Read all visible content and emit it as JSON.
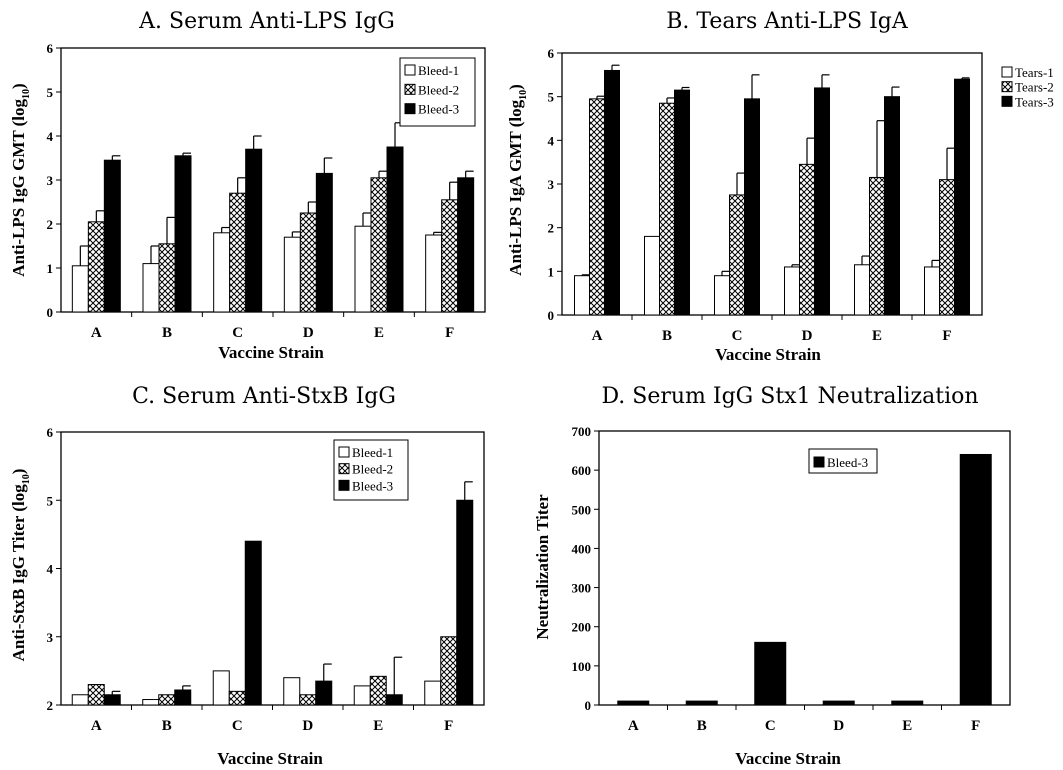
{
  "chart_data": [
    {
      "type": "bar",
      "title": "A. Serum Anti-LPS IgG",
      "xlabel": "Vaccine Strain",
      "ylabel_main": "Anti-LPS IgG GMT (log",
      "ylabel_sub": "10",
      "ylabel_end": ")",
      "categories": [
        "A",
        "B",
        "C",
        "D",
        "E",
        "F"
      ],
      "ylim": [
        0,
        6
      ],
      "yticks": [
        0,
        1,
        2,
        3,
        4,
        5,
        6
      ],
      "legend_position": "top-right",
      "series": [
        {
          "name": "Bleed-1",
          "pattern": "white",
          "values": [
            1.05,
            1.1,
            1.8,
            1.7,
            1.95,
            1.75
          ],
          "errors": [
            0.45,
            0.4,
            0.12,
            0.12,
            0.3,
            0.06
          ]
        },
        {
          "name": "Bleed-2",
          "pattern": "crosshatch",
          "values": [
            2.05,
            1.55,
            2.7,
            2.25,
            3.05,
            2.55
          ],
          "errors": [
            0.25,
            0.6,
            0.35,
            0.25,
            0.15,
            0.4
          ]
        },
        {
          "name": "Bleed-3",
          "pattern": "black",
          "values": [
            3.45,
            3.55,
            3.7,
            3.15,
            3.75,
            3.05
          ],
          "errors": [
            0.1,
            0.06,
            0.3,
            0.35,
            0.55,
            0.15
          ]
        }
      ]
    },
    {
      "type": "bar",
      "title": "B. Tears Anti-LPS IgA",
      "xlabel": "Vaccine Strain",
      "ylabel_main": "Anti-LPS IgA GMT (log",
      "ylabel_sub": "10",
      "ylabel_end": ")",
      "categories": [
        "A",
        "B",
        "C",
        "D",
        "E",
        "F"
      ],
      "ylim": [
        0,
        6
      ],
      "yticks": [
        0,
        1,
        2,
        3,
        4,
        5,
        6
      ],
      "legend_position": "outside-right",
      "series": [
        {
          "name": "Tears-1",
          "pattern": "white",
          "values": [
            0.9,
            1.8,
            0.9,
            1.1,
            1.15,
            1.1
          ],
          "errors": [
            0.02,
            0.0,
            0.1,
            0.05,
            0.2,
            0.15
          ]
        },
        {
          "name": "Tears-2",
          "pattern": "crosshatch",
          "values": [
            4.95,
            4.85,
            2.75,
            3.45,
            3.15,
            3.1
          ],
          "errors": [
            0.06,
            0.12,
            0.5,
            0.6,
            1.3,
            0.72
          ]
        },
        {
          "name": "Tears-3",
          "pattern": "black",
          "values": [
            5.6,
            5.15,
            4.95,
            5.2,
            5.0,
            5.4
          ],
          "errors": [
            0.12,
            0.06,
            0.55,
            0.3,
            0.22,
            0.03
          ]
        }
      ]
    },
    {
      "type": "bar",
      "title": "C. Serum Anti-StxB IgG",
      "xlabel": "Vaccine Strain",
      "ylabel_main": "Anti-StxB IgG Titer (log",
      "ylabel_sub": "10",
      "ylabel_end": ")",
      "categories": [
        "A",
        "B",
        "C",
        "D",
        "E",
        "F"
      ],
      "ylim": [
        2,
        6
      ],
      "yticks": [
        2,
        3,
        4,
        5,
        6
      ],
      "legend_position": "top-right",
      "series": [
        {
          "name": "Bleed-1",
          "pattern": "white",
          "values": [
            2.15,
            2.08,
            2.5,
            2.4,
            2.28,
            2.35
          ],
          "errors": [
            0,
            0,
            0,
            0,
            0,
            0
          ]
        },
        {
          "name": "Bleed-2",
          "pattern": "crosshatch",
          "values": [
            2.3,
            2.15,
            2.2,
            2.15,
            2.42,
            3.0
          ],
          "errors": [
            0,
            0,
            0,
            0,
            0,
            0
          ]
        },
        {
          "name": "Bleed-3",
          "pattern": "black",
          "values": [
            2.15,
            2.22,
            4.4,
            2.35,
            2.15,
            5.0
          ],
          "errors": [
            0.05,
            0.06,
            0.0,
            0.25,
            0.55,
            0.27
          ]
        }
      ]
    },
    {
      "type": "bar",
      "title": "D. Serum IgG Stx1 Neutralization",
      "xlabel": "Vaccine Strain",
      "ylabel_main": "Neutralization Titer",
      "ylabel_sub": "",
      "ylabel_end": "",
      "categories": [
        "A",
        "B",
        "C",
        "D",
        "E",
        "F"
      ],
      "ylim": [
        0,
        700
      ],
      "yticks": [
        0,
        100,
        200,
        300,
        400,
        500,
        600,
        700
      ],
      "legend_position": "top-center",
      "series": [
        {
          "name": "Bleed-3",
          "pattern": "black",
          "values": [
            10,
            10,
            160,
            10,
            10,
            640
          ],
          "errors": [
            0,
            0,
            0,
            0,
            0,
            0
          ]
        }
      ]
    }
  ]
}
